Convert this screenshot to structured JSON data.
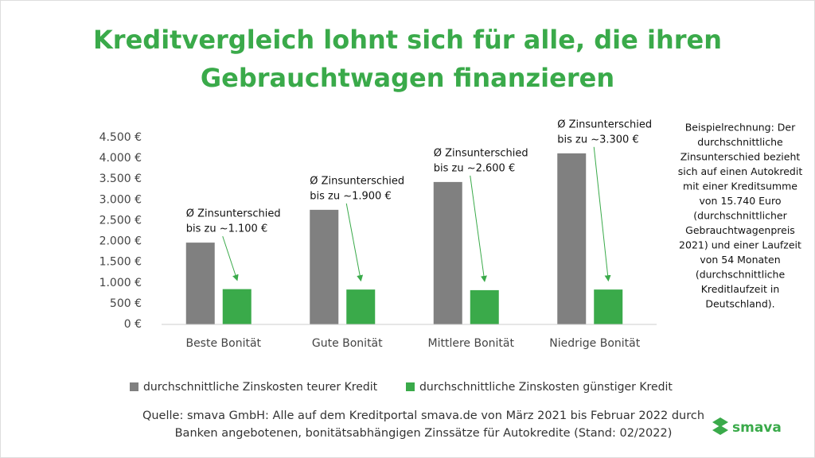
{
  "chart_data": {
    "type": "bar",
    "title": [
      "Kreditvergleich lohnt sich für alle, die ihren",
      "Gebrauchtwagen finanzieren"
    ],
    "categories": [
      "Beste Bonität",
      "Gute Bonität",
      "Mittlere Bonität",
      "Niedrige Bonität"
    ],
    "series": [
      {
        "name": "durchschnittliche Zinskosten teurer Kredit",
        "color": "#808080",
        "values": [
          1970,
          2760,
          3430,
          4120
        ]
      },
      {
        "name": "durchschnittliche Zinskosten günstiger Kredit",
        "color": "#3aaa4a",
        "values": [
          850,
          840,
          825,
          840
        ]
      }
    ],
    "ylim": [
      0,
      4500
    ],
    "yticks": [
      {
        "value": 0,
        "label": "0 €"
      },
      {
        "value": 500,
        "label": "500 €"
      },
      {
        "value": 1000,
        "label": "1.000 €"
      },
      {
        "value": 1500,
        "label": "1.500 €"
      },
      {
        "value": 2000,
        "label": "2.000 €"
      },
      {
        "value": 2500,
        "label": "2.500 €"
      },
      {
        "value": 3000,
        "label": "3.000 €"
      },
      {
        "value": 3500,
        "label": "3.500 €"
      },
      {
        "value": 4000,
        "label": "4.000 €"
      },
      {
        "value": 4500,
        "label": "4.500 €"
      }
    ],
    "grid": false,
    "annotations": [
      [
        "Ø Zinsunterschied",
        "bis zu ~1.100 €"
      ],
      [
        "Ø Zinsunterschied",
        "bis zu ~1.900 €"
      ],
      [
        "Ø Zinsunterschied",
        "bis zu ~2.600 €"
      ],
      [
        "Ø Zinsunterschied",
        "bis zu ~3.300 €"
      ]
    ],
    "note": [
      "Beispielrechnung: Der",
      "durchschnittliche",
      "Zinsunterschied bezieht",
      "sich auf einen Autokredit",
      "mit einer Kreditsumme",
      "von 15.740 Euro",
      "(durchschnittlicher",
      "Gebrauchtwagenpreis",
      "2021) und einer Laufzeit",
      "von 54 Monaten",
      "(durchschnittliche",
      "Kreditlaufzeit in",
      "Deutschland)."
    ],
    "source": [
      "Quelle: smava GmbH: Alle auf dem Kreditportal smava.de von März 2021 bis Februar 2022 durch",
      "Banken angebotenen, bonitätsabhängigen Zinssätze für Autokredite (Stand: 02/2022)"
    ],
    "logo": "smava"
  }
}
